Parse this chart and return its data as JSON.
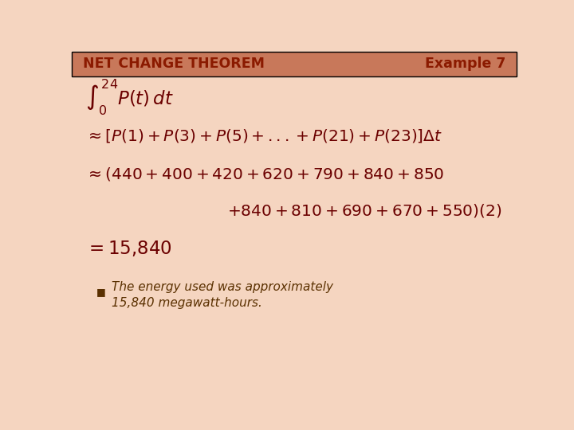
{
  "title_left": "NET CHANGE THEOREM",
  "title_right": "Example 7",
  "title_color": "#8B1A00",
  "header_bg_color": "#C8785A",
  "bg_color": "#F5D5C0",
  "math_color": "#6B0000",
  "bullet_color": "#5A3000",
  "bullet_line1": "The energy used was approximately",
  "bullet_line2": "15,840 megawatt-hours.",
  "line1": "$\\int_0^{24} P(t)\\,dt$",
  "line2": "$\\approx [P(1) + P(3) + P(5) + ... + P(21) + P(23)]\\Delta t$",
  "line3": "$\\approx (440 + 400 + 420 + 620 + 790 + 840 + 850$",
  "line4": "$+ 840 + 810 + 690 + 670 + 550)(2)$",
  "line5": "$= 15{,}840$"
}
